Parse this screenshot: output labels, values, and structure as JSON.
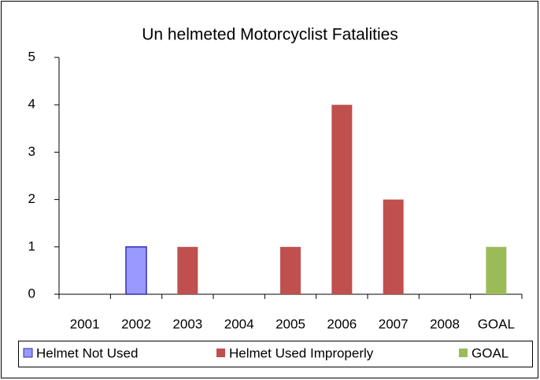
{
  "chart_data": {
    "type": "stacked_bar",
    "title": "Un helmeted Motorcyclist Fatalities",
    "categories": [
      "2001",
      "2002",
      "2003",
      "2004",
      "2005",
      "2006",
      "2007",
      "2008",
      "GOAL"
    ],
    "series": [
      {
        "name": "Helmet Not Used",
        "color": "#9999ff",
        "values": [
          0,
          1,
          0,
          0,
          0,
          0,
          0,
          0,
          0
        ]
      },
      {
        "name": "Helmet Used Improperly",
        "color": "#c0504d",
        "values": [
          0,
          0,
          1,
          0,
          1,
          4,
          2,
          0,
          0
        ]
      },
      {
        "name": "GOAL",
        "color": "#9bbb59",
        "values": [
          0,
          0,
          0,
          0,
          0,
          0,
          0,
          0,
          1
        ]
      }
    ],
    "ylim": [
      0,
      5
    ],
    "yticks": [
      0,
      1,
      2,
      3,
      4,
      5
    ],
    "grid": false,
    "legend": "bottom"
  }
}
